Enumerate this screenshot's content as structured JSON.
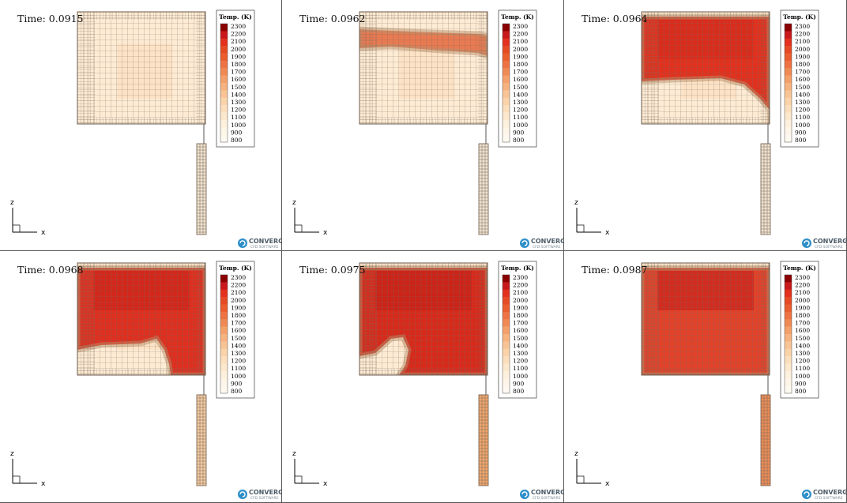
{
  "legend": {
    "title": "Temp. (K)",
    "ticks": [
      "2300",
      "2200",
      "2100",
      "2000",
      "1900",
      "1800",
      "1700",
      "1600",
      "1500",
      "1400",
      "1300",
      "1200",
      "1100",
      "1000",
      "900",
      "800"
    ],
    "colors": [
      "#8b0000",
      "#c8181b",
      "#e3301f",
      "#e64a25",
      "#ea5d2f",
      "#ee7243",
      "#f08a55",
      "#f4a06b",
      "#f6b27f",
      "#f8c495",
      "#fad3a9",
      "#fbdfbd",
      "#fce8cd",
      "#fdf0dd",
      "#fdf5e8",
      "#fef9f0"
    ]
  },
  "axes": {
    "z_label": "z",
    "x_label": "x"
  },
  "logo": {
    "name": "CONVERGE",
    "sub": "CFD SOFTWARE"
  },
  "panels": [
    {
      "time_label": "Time: 0.0915",
      "time": 0.0915
    },
    {
      "time_label": "Time: 0.0962",
      "time": 0.0962
    },
    {
      "time_label": "Time: 0.0964",
      "time": 0.0964
    },
    {
      "time_label": "Time: 0.0968",
      "time": 0.0968
    },
    {
      "time_label": "Time: 0.0975",
      "time": 0.0975
    },
    {
      "time_label": "Time: 0.0987",
      "time": 0.0987
    }
  ]
}
